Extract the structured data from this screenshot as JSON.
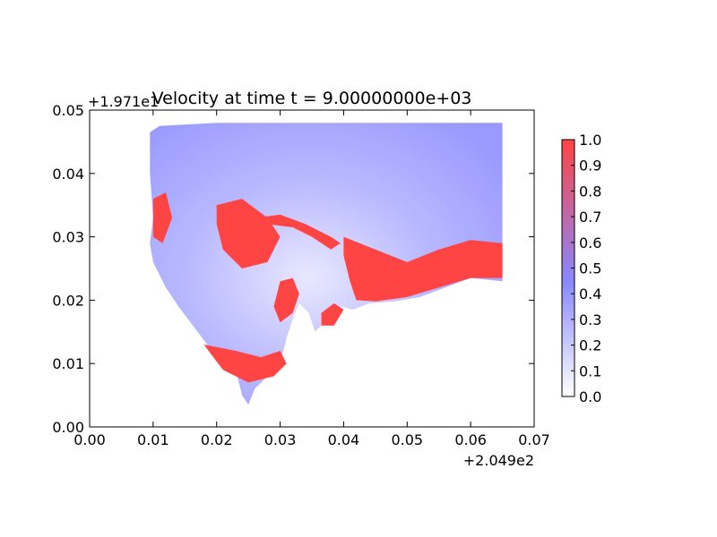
{
  "chart_data": {
    "type": "heatmap",
    "title": "Velocity at time t = 9.00000000e+03",
    "xlabel": "",
    "ylabel": "",
    "x_offset_text": "+2.049e2",
    "y_offset_text": "+1.971e1",
    "xlim": [
      0.0,
      0.07
    ],
    "ylim": [
      0.0,
      0.05
    ],
    "x_ticks": [
      0.0,
      0.01,
      0.02,
      0.03,
      0.04,
      0.05,
      0.06,
      0.07
    ],
    "x_tick_labels": [
      "0.00",
      "0.01",
      "0.02",
      "0.03",
      "0.04",
      "0.05",
      "0.06",
      "0.07"
    ],
    "y_ticks": [
      0.0,
      0.01,
      0.02,
      0.03,
      0.04,
      0.05
    ],
    "y_tick_labels": [
      "0.00",
      "0.01",
      "0.02",
      "0.03",
      "0.04",
      "0.05"
    ],
    "grid": false,
    "colorbar": {
      "range": [
        0.0,
        1.0
      ],
      "ticks": [
        0.0,
        0.1,
        0.2,
        0.3,
        0.4,
        0.5,
        0.6,
        0.7,
        0.8,
        0.9,
        1.0
      ],
      "tick_labels": [
        "0.0",
        "0.1",
        "0.2",
        "0.3",
        "0.4",
        "0.5",
        "0.6",
        "0.7",
        "0.8",
        "0.9",
        "1.0"
      ],
      "colors": [
        "#ffffff",
        "#8888ff",
        "#ff4444"
      ]
    },
    "domain_outline": [
      [
        0.0095,
        0.0465
      ],
      [
        0.011,
        0.0475
      ],
      [
        0.02,
        0.048
      ],
      [
        0.04,
        0.048
      ],
      [
        0.065,
        0.048
      ],
      [
        0.065,
        0.023
      ],
      [
        0.06,
        0.0235
      ],
      [
        0.056,
        0.022
      ],
      [
        0.052,
        0.0205
      ],
      [
        0.048,
        0.0198
      ],
      [
        0.044,
        0.0195
      ],
      [
        0.0415,
        0.0185
      ],
      [
        0.0395,
        0.019
      ],
      [
        0.037,
        0.0165
      ],
      [
        0.0355,
        0.015
      ],
      [
        0.0345,
        0.018
      ],
      [
        0.033,
        0.0195
      ],
      [
        0.032,
        0.017
      ],
      [
        0.031,
        0.014
      ],
      [
        0.03,
        0.01
      ],
      [
        0.028,
        0.008
      ],
      [
        0.026,
        0.006
      ],
      [
        0.025,
        0.0035
      ],
      [
        0.024,
        0.005
      ],
      [
        0.023,
        0.009
      ],
      [
        0.02,
        0.011
      ],
      [
        0.017,
        0.015
      ],
      [
        0.014,
        0.019
      ],
      [
        0.012,
        0.022
      ],
      [
        0.01,
        0.026
      ],
      [
        0.0095,
        0.029
      ],
      [
        0.01,
        0.033
      ],
      [
        0.0095,
        0.04
      ],
      [
        0.0095,
        0.0465
      ]
    ],
    "high_velocity_regions": [
      [
        [
          0.02,
          0.035
        ],
        [
          0.024,
          0.036
        ],
        [
          0.028,
          0.033
        ],
        [
          0.03,
          0.03
        ],
        [
          0.028,
          0.026
        ],
        [
          0.024,
          0.025
        ],
        [
          0.021,
          0.028
        ],
        [
          0.02,
          0.032
        ]
      ],
      [
        [
          0.04,
          0.03
        ],
        [
          0.045,
          0.028
        ],
        [
          0.05,
          0.026
        ],
        [
          0.055,
          0.028
        ],
        [
          0.06,
          0.0295
        ],
        [
          0.065,
          0.029
        ],
        [
          0.065,
          0.0235
        ],
        [
          0.06,
          0.0235
        ],
        [
          0.055,
          0.022
        ],
        [
          0.05,
          0.0205
        ],
        [
          0.045,
          0.0198
        ],
        [
          0.042,
          0.02
        ],
        [
          0.041,
          0.023
        ],
        [
          0.04,
          0.027
        ]
      ],
      [
        [
          0.026,
          0.033
        ],
        [
          0.03,
          0.0335
        ],
        [
          0.034,
          0.032
        ],
        [
          0.036,
          0.031
        ],
        [
          0.038,
          0.03
        ],
        [
          0.0395,
          0.029
        ],
        [
          0.038,
          0.028
        ],
        [
          0.035,
          0.03
        ],
        [
          0.032,
          0.0315
        ],
        [
          0.028,
          0.032
        ]
      ],
      [
        [
          0.018,
          0.013
        ],
        [
          0.023,
          0.012
        ],
        [
          0.027,
          0.011
        ],
        [
          0.03,
          0.012
        ],
        [
          0.031,
          0.01
        ],
        [
          0.029,
          0.008
        ],
        [
          0.025,
          0.007
        ],
        [
          0.021,
          0.009
        ]
      ],
      [
        [
          0.03,
          0.023
        ],
        [
          0.032,
          0.0235
        ],
        [
          0.033,
          0.021
        ],
        [
          0.032,
          0.018
        ],
        [
          0.03,
          0.0165
        ],
        [
          0.029,
          0.019
        ]
      ],
      [
        [
          0.01,
          0.036
        ],
        [
          0.012,
          0.037
        ],
        [
          0.013,
          0.033
        ],
        [
          0.0115,
          0.029
        ],
        [
          0.01,
          0.03
        ]
      ],
      [
        [
          0.0365,
          0.018
        ],
        [
          0.0385,
          0.0195
        ],
        [
          0.04,
          0.0185
        ],
        [
          0.0385,
          0.016
        ],
        [
          0.0365,
          0.016
        ]
      ]
    ]
  }
}
